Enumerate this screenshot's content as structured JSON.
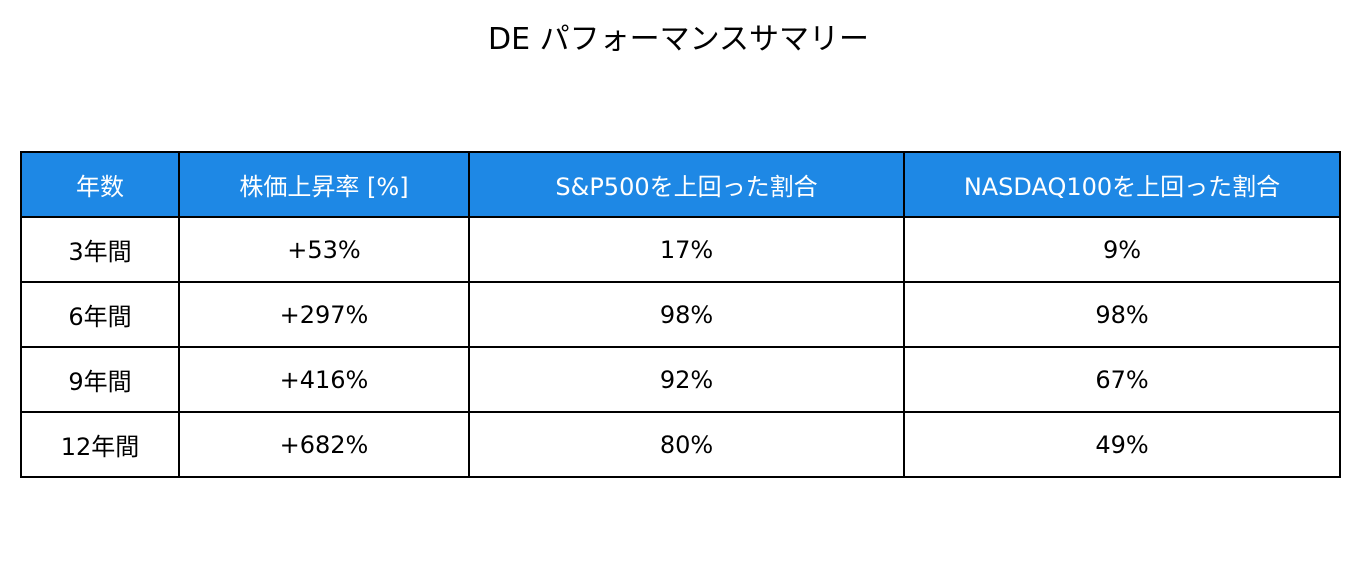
{
  "header": {
    "title": "DE パフォーマンスサマリー"
  },
  "table": {
    "columns": [
      "年数",
      "株価上昇率 [%]",
      "S&P500を上回った割合",
      "NASDAQ100を上回った割合"
    ],
    "rows": [
      [
        "3年間",
        "+53%",
        "17%",
        "9%"
      ],
      [
        "6年間",
        "+297%",
        "98%",
        "98%"
      ],
      [
        "9年間",
        "+416%",
        "92%",
        "67%"
      ],
      [
        "12年間",
        "+682%",
        "80%",
        "49%"
      ]
    ]
  }
}
